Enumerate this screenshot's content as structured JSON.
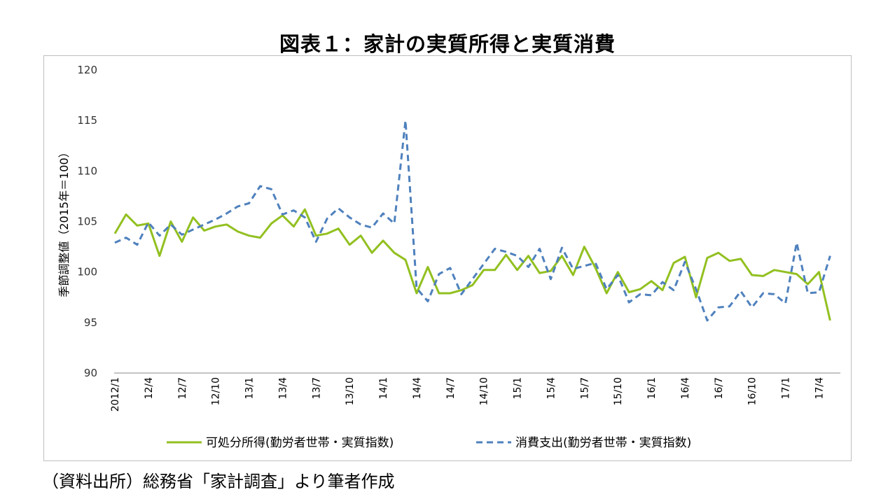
{
  "title": "図表１：家計の実質所得と実質消費",
  "source": "（資料出所）総務省「家計調査」より筆者作成",
  "chart_data": {
    "type": "line",
    "title": "図表１：家計の実質所得と実質消費",
    "xlabel": "",
    "ylabel": "季節調整値（2015年＝100）",
    "ylim": [
      90,
      120
    ],
    "yticks": [
      90,
      95,
      100,
      105,
      110,
      115,
      120
    ],
    "grid": false,
    "legend_position": "bottom",
    "x_start": "2012/1",
    "x_tick_labels": [
      "2012/1",
      "12/4",
      "12/7",
      "12/10",
      "13/1",
      "13/4",
      "13/7",
      "13/10",
      "14/1",
      "14/4",
      "14/7",
      "14/10",
      "15/1",
      "15/4",
      "15/7",
      "15/10",
      "16/1",
      "16/4",
      "16/7",
      "16/10",
      "17/1",
      "17/4"
    ],
    "series": [
      {
        "name": "可処分所得(勤労者世帯・実質指数)",
        "color": "#92c020",
        "style": "solid",
        "values": [
          103.8,
          105.7,
          104.6,
          104.8,
          101.6,
          105.0,
          103.0,
          105.4,
          104.1,
          104.5,
          104.7,
          104.0,
          103.6,
          103.4,
          104.8,
          105.6,
          104.5,
          106.2,
          103.6,
          103.8,
          104.3,
          102.7,
          103.6,
          101.9,
          103.1,
          101.9,
          101.2,
          97.9,
          100.5,
          97.9,
          97.9,
          98.2,
          98.7,
          100.2,
          100.2,
          101.7,
          100.2,
          101.6,
          99.9,
          100.1,
          101.6,
          99.7,
          102.5,
          100.4,
          97.9,
          100.0,
          98.0,
          98.3,
          99.1,
          98.2,
          100.9,
          101.5,
          97.5,
          101.4,
          101.9,
          101.1,
          101.3,
          99.7,
          99.6,
          100.2,
          100.0,
          99.8,
          98.8,
          100.0,
          95.2
        ]
      },
      {
        "name": "消費支出(勤労者世帯・実質指数)",
        "color": "#4f81bd",
        "style": "dashed",
        "values": [
          102.9,
          103.4,
          102.7,
          104.9,
          103.6,
          104.7,
          103.7,
          104.2,
          104.7,
          105.2,
          105.8,
          106.5,
          106.8,
          108.5,
          108.2,
          105.7,
          106.1,
          105.4,
          103.0,
          105.3,
          106.3,
          105.4,
          104.7,
          104.4,
          105.8,
          104.8,
          115.0,
          98.4,
          97.1,
          99.8,
          100.4,
          97.8,
          99.3,
          100.8,
          102.3,
          102.0,
          101.6,
          100.5,
          102.3,
          99.3,
          102.4,
          100.3,
          100.6,
          100.9,
          98.3,
          99.7,
          97.0,
          97.8,
          97.7,
          99.0,
          98.2,
          101.0,
          98.3,
          95.2,
          96.5,
          96.6,
          98.1,
          96.5,
          97.9,
          97.8,
          96.9,
          102.9,
          97.9,
          98.0,
          101.6
        ]
      }
    ]
  }
}
